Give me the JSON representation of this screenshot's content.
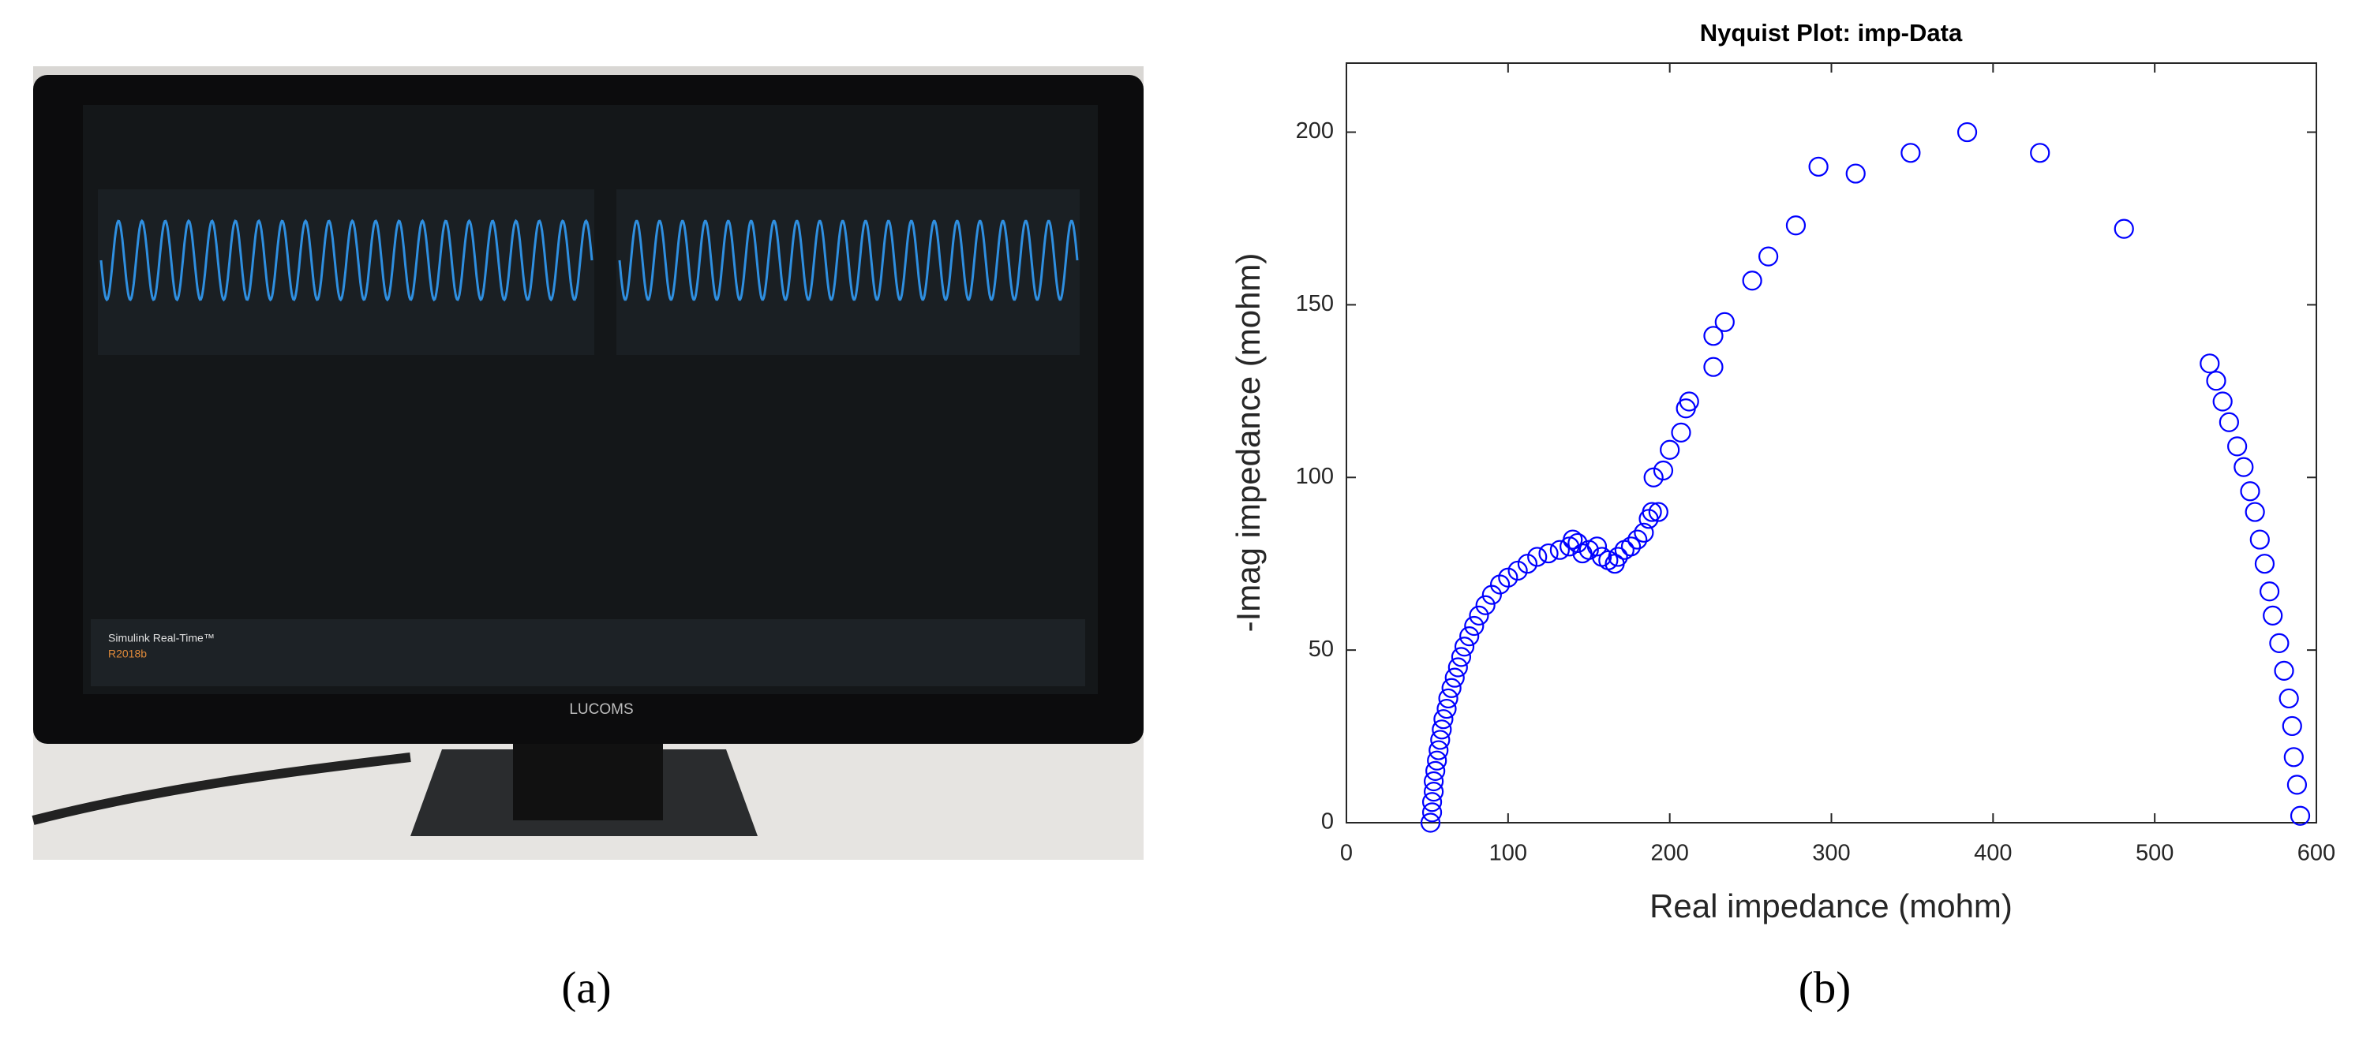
{
  "photo": {
    "brand": "LUCOMS",
    "screen_label": "Simulink Real-Time™",
    "version": "R2018b"
  },
  "captions": [
    "(a)",
    "(b)"
  ],
  "chart_data": {
    "type": "scatter",
    "title": "Nyquist Plot: imp-Data",
    "x_label": "Real impedance (mohm)",
    "y_label": "-Imag impedance (mohm)",
    "color": "#0000ff",
    "marker": "open-circle",
    "xlim": [
      0,
      600
    ],
    "ylim": [
      0,
      220
    ],
    "xticks": [
      0,
      100,
      200,
      300,
      400,
      500,
      600
    ],
    "yticks": [
      0,
      50,
      100,
      150,
      200
    ],
    "grid": false,
    "x": [
      52,
      53,
      53,
      54,
      54,
      55,
      56,
      57,
      58,
      59,
      60,
      62,
      63,
      65,
      67,
      69,
      71,
      73,
      76,
      79,
      82,
      86,
      90,
      95,
      100,
      106,
      112,
      118,
      125,
      132,
      138,
      140,
      143,
      146,
      150,
      155,
      158,
      162,
      166,
      168,
      172,
      176,
      180,
      184,
      187,
      189,
      193,
      190,
      196,
      200,
      207,
      210,
      212,
      227,
      227,
      234,
      251,
      261,
      278,
      292,
      315,
      349,
      384,
      429,
      481,
      534,
      538,
      542,
      546,
      551,
      555,
      559,
      562,
      565,
      568,
      571,
      573,
      577,
      580,
      583,
      585,
      586,
      588,
      590
    ],
    "values": [
      0,
      3,
      6,
      9,
      12,
      15,
      18,
      21,
      24,
      27,
      30,
      33,
      36,
      39,
      42,
      45,
      48,
      51,
      54,
      57,
      60,
      63,
      66,
      69,
      71,
      73,
      75,
      77,
      78,
      79,
      80,
      82,
      81,
      78,
      79,
      80,
      77,
      76,
      75,
      77,
      79,
      80,
      82,
      84,
      88,
      90,
      90,
      100,
      102,
      108,
      113,
      120,
      122,
      132,
      141,
      145,
      157,
      164,
      173,
      190,
      188,
      194,
      200,
      194,
      172,
      133,
      128,
      122,
      116,
      109,
      103,
      96,
      90,
      82,
      75,
      67,
      60,
      52,
      44,
      36,
      28,
      19,
      11,
      2
    ]
  }
}
